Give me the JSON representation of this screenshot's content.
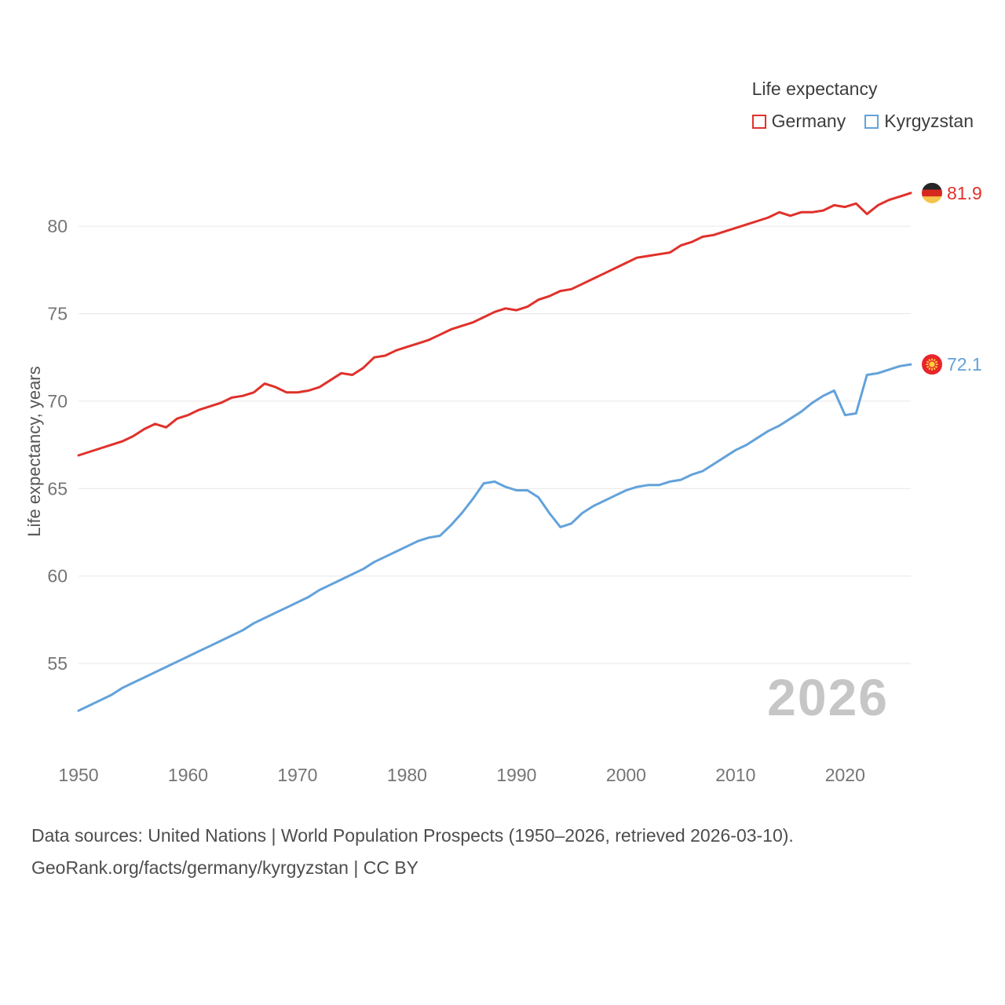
{
  "page": {
    "watermark_year": "2026",
    "footer_line1": "Data sources: United Nations | World Population Prospects (1950–2026, retrieved 2026-03-10).",
    "footer_line2": "GeoRank.org/facts/germany/kyrgyzstan | CC BY"
  },
  "legend": {
    "title": "Life expectancy"
  },
  "icons": {
    "germany_flag": {
      "stripe_colors": [
        "#262626",
        "#d5281e",
        "#f6c44c"
      ]
    },
    "kyrgyzstan_flag": {
      "bg": "#e8252b",
      "sun": "#ffd23c"
    }
  },
  "chart_data": {
    "type": "line",
    "title": "Life expectancy",
    "xlabel": "",
    "ylabel": "Life expectancy, years",
    "x_range": [
      1950,
      2026
    ],
    "x_step": 1,
    "ylim": [
      51.5,
      82.7
    ],
    "y_ticks": [
      55,
      60,
      65,
      70,
      75,
      80
    ],
    "x_ticks": [
      1950,
      1960,
      1970,
      1980,
      1990,
      2000,
      2010,
      2020
    ],
    "grid": "horizontal",
    "legend_position": "top-right",
    "series": [
      {
        "name": "Germany",
        "color": "#e0312a",
        "end_label": "81.9",
        "flag_icon": "germany-flag-icon",
        "values": [
          66.9,
          67.1,
          67.3,
          67.5,
          67.7,
          68.0,
          68.4,
          68.7,
          68.5,
          69.0,
          69.2,
          69.5,
          69.7,
          69.9,
          70.2,
          70.3,
          70.5,
          71.0,
          70.8,
          70.5,
          70.5,
          70.6,
          70.8,
          71.2,
          71.6,
          71.5,
          71.9,
          72.5,
          72.6,
          72.9,
          73.1,
          73.3,
          73.5,
          73.8,
          74.1,
          74.3,
          74.5,
          74.8,
          75.1,
          75.3,
          75.2,
          75.4,
          75.8,
          76.0,
          76.3,
          76.4,
          76.7,
          77.0,
          77.3,
          77.6,
          77.9,
          78.2,
          78.3,
          78.4,
          78.5,
          78.9,
          79.1,
          79.4,
          79.5,
          79.7,
          79.9,
          80.1,
          80.3,
          80.5,
          80.8,
          80.6,
          80.8,
          80.8,
          80.9,
          81.2,
          81.1,
          81.3,
          80.7,
          81.2,
          81.5,
          81.7,
          81.9
        ]
      },
      {
        "name": "Kyrgyzstan",
        "color": "#63a2da",
        "end_label": "72.1",
        "flag_icon": "kyrgyzstan-flag-icon",
        "values": [
          52.3,
          52.6,
          52.9,
          53.2,
          53.6,
          53.9,
          54.2,
          54.5,
          54.8,
          55.1,
          55.4,
          55.7,
          56.0,
          56.3,
          56.6,
          56.9,
          57.3,
          57.6,
          57.9,
          58.2,
          58.5,
          58.8,
          59.2,
          59.5,
          59.8,
          60.1,
          60.4,
          60.8,
          61.1,
          61.4,
          61.7,
          62.0,
          62.2,
          62.3,
          62.9,
          63.6,
          64.4,
          65.3,
          65.4,
          65.1,
          64.9,
          64.9,
          64.5,
          63.6,
          62.8,
          63.0,
          63.6,
          64.0,
          64.3,
          64.6,
          64.9,
          65.1,
          65.2,
          65.2,
          65.4,
          65.5,
          65.8,
          66.0,
          66.4,
          66.8,
          67.2,
          67.5,
          67.9,
          68.3,
          68.6,
          69.0,
          69.4,
          69.9,
          70.3,
          70.6,
          69.2,
          69.3,
          71.5,
          71.6,
          71.8,
          72.0,
          72.1
        ]
      }
    ]
  }
}
